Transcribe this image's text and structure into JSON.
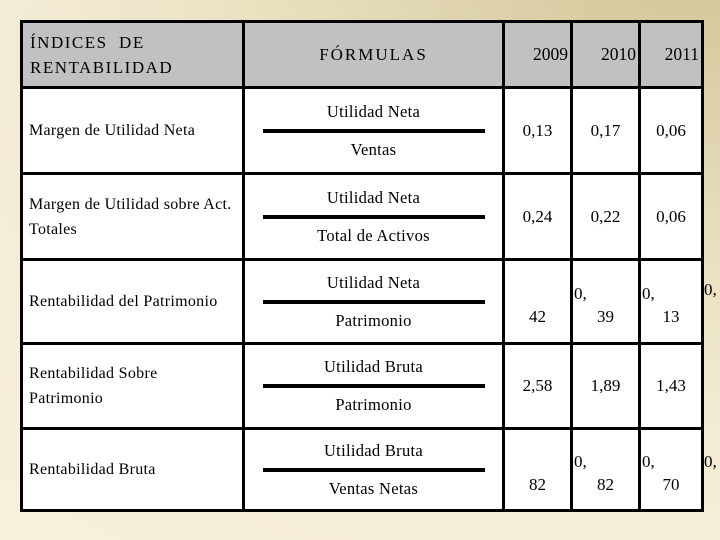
{
  "slide": {
    "background_color": "#f2ebd3",
    "background_shade_top_right": "#d2c598",
    "header_bg_color": "#c1c1c1",
    "border_color": "#000000",
    "text_color": "#000000"
  },
  "table": {
    "header": {
      "col1_line1": "ÍNDICES  DE",
      "col1_line2": "RENTABILIDAD",
      "col2": "FÓRMULAS",
      "years": [
        "2009",
        "2010",
        "2011"
      ]
    },
    "rows": [
      {
        "label_lines": [
          "Margen de Utilidad Neta"
        ],
        "formula": {
          "numerator": "Utilidad Neta",
          "denominator": "Ventas"
        },
        "v1": "0,13",
        "v2": "0,17",
        "v3": "0,06"
      },
      {
        "label_lines": [
          "Margen de Utilidad sobre Act.",
          "Totales"
        ],
        "formula": {
          "numerator": "Utilidad Neta",
          "denominator": "Total de Activos"
        },
        "v1": "0,24",
        "v2": "0,22",
        "v3": "0,06"
      },
      {
        "label_lines": [
          "Rentabilidad del Patrimonio"
        ],
        "formula": {
          "numerator": "Utilidad Neta",
          "denominator": "Patrimonio"
        },
        "v1": "42",
        "v2_top": "0,",
        "v2": "39",
        "v3_top": "0,",
        "v3": "13",
        "overflow": "0,"
      },
      {
        "label_lines": [
          "Rentabilidad Sobre",
          "Patrimonio"
        ],
        "formula": {
          "numerator": "Utilidad Bruta",
          "denominator": "Patrimonio"
        },
        "v1": "2,58",
        "v2": "1,89",
        "v3": "1,43"
      },
      {
        "label_lines": [
          "Rentabilidad Bruta"
        ],
        "formula": {
          "numerator": "Utilidad Bruta",
          "denominator": "Ventas Netas"
        },
        "v1": "82",
        "v2_top": "0,",
        "v2": "82",
        "v3_top": "0,",
        "v3": "70",
        "overflow": "0,"
      }
    ]
  }
}
